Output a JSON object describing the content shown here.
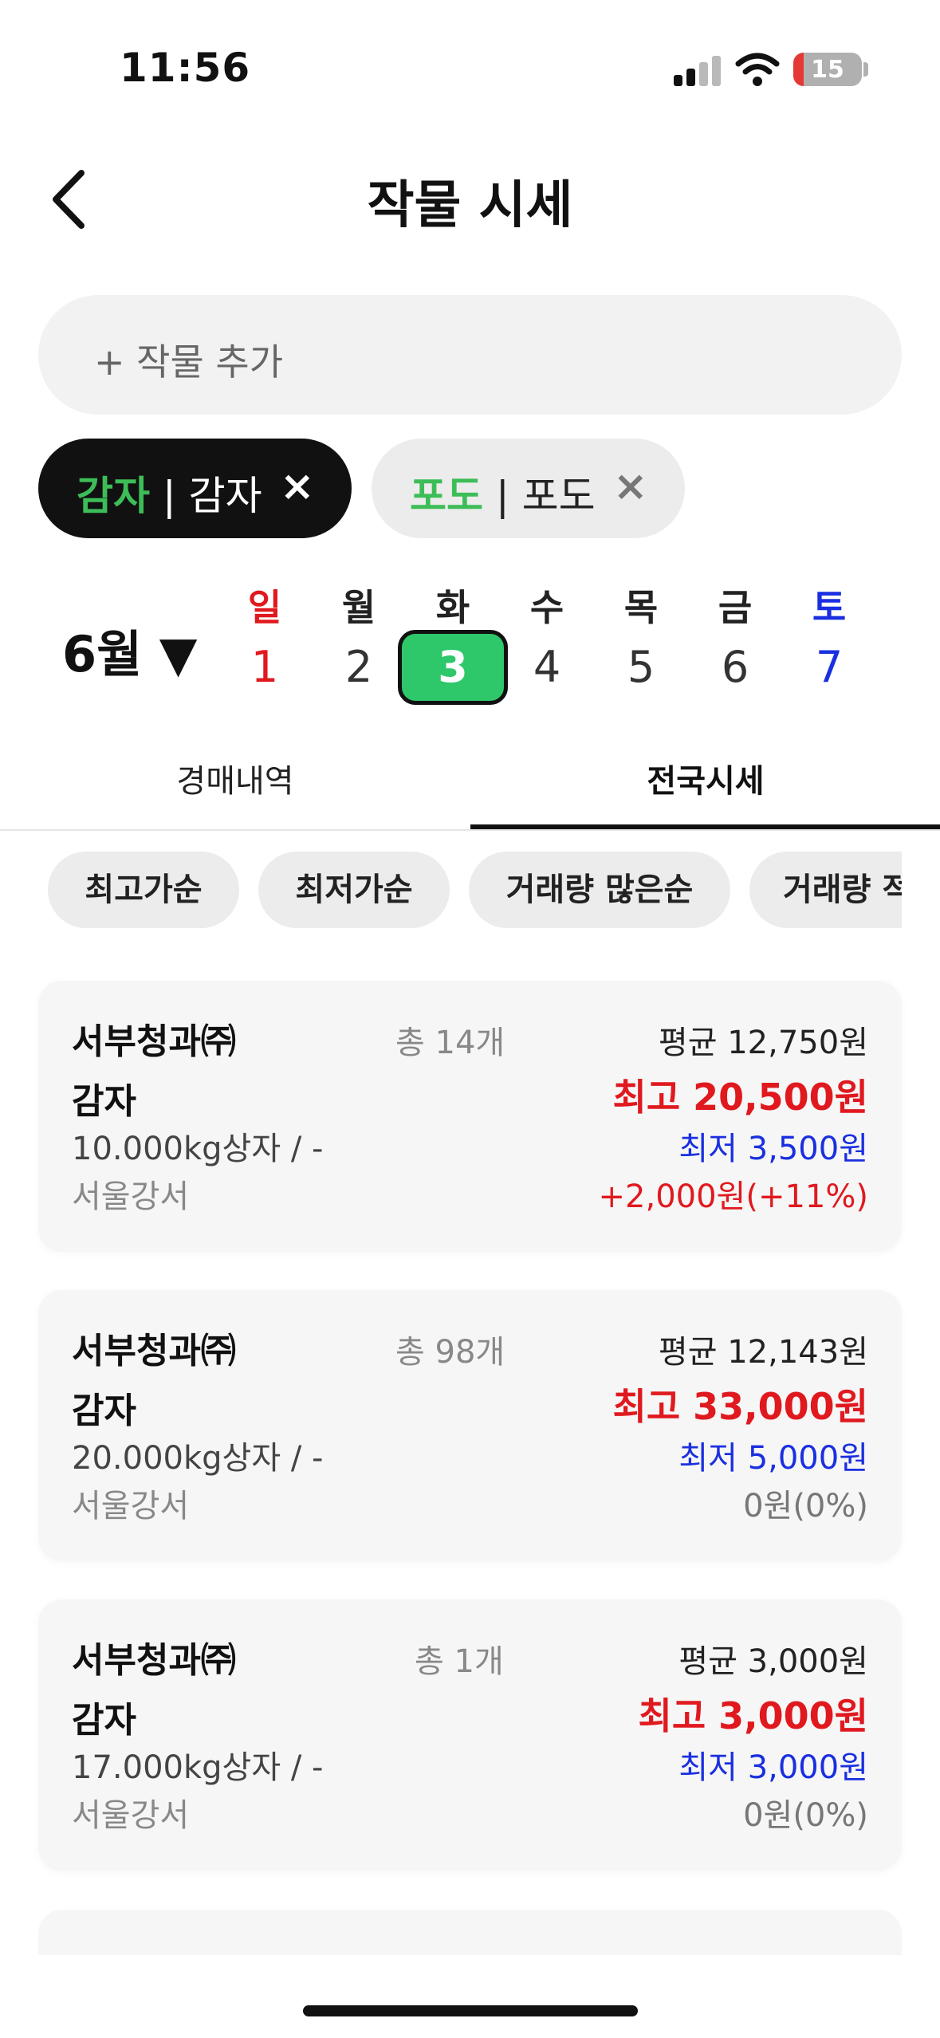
{
  "status_bar": {
    "time": "11:56",
    "battery": "15",
    "battery_level": 0.15
  },
  "header": {
    "title": "작물 시세"
  },
  "add_crop": {
    "label": "+ 작물 추가"
  },
  "chips": [
    {
      "primary": "감자",
      "secondary": " | 감자",
      "close": "×"
    },
    {
      "primary": "포도",
      "secondary": " | 포도",
      "close": "×"
    }
  ],
  "calendar": {
    "month": "6월 ▼",
    "days": [
      {
        "name": "일",
        "num": "1"
      },
      {
        "name": "월",
        "num": "2"
      },
      {
        "name": "화",
        "num": "3"
      },
      {
        "name": "수",
        "num": "4"
      },
      {
        "name": "목",
        "num": "5"
      },
      {
        "name": "금",
        "num": "6"
      },
      {
        "name": "토",
        "num": "7"
      }
    ]
  },
  "tabs": [
    {
      "label": "경매내역"
    },
    {
      "label": "전국시세"
    }
  ],
  "sort_options": [
    {
      "label": "최고가순"
    },
    {
      "label": "최저가순"
    },
    {
      "label": "거래량 많은순"
    },
    {
      "label": "거래량 적"
    }
  ],
  "listings": [
    {
      "seller": "서부청과㈜",
      "count": "총 14개",
      "crop": "감자",
      "spec": "10.000kg상자 / -",
      "market": "서울강서",
      "avg": "평균 12,750원",
      "high_label": "최고 ",
      "high": "20,500원",
      "low_label": "최저 ",
      "low": "3,500원",
      "change": "+2,000원(+11%)"
    },
    {
      "seller": "서부청과㈜",
      "count": "총 98개",
      "crop": "감자",
      "spec": "20.000kg상자 / -",
      "market": "서울강서",
      "avg": "평균 12,143원",
      "high_label": "최고 ",
      "high": "33,000원",
      "low_label": "최저 ",
      "low": "5,000원",
      "change": "0원(0%)"
    },
    {
      "seller": "서부청과㈜",
      "count": "총 1개",
      "crop": "감자",
      "spec": "17.000kg상자 / -",
      "market": "서울강서",
      "avg": "평균 3,000원",
      "high_label": "최고 ",
      "high": "3,000원",
      "low_label": "최저 ",
      "low": "3,000원",
      "change": "0원(0%)"
    }
  ],
  "colors": {
    "accent_green": "#2ec76a",
    "chip_green": "#3dbd57",
    "price_high": "#e0191f",
    "price_low": "#1a2fe0"
  },
  "icons": {
    "back": "chevron-left-icon",
    "close": "close-icon",
    "signal": "signal-icon",
    "wifi": "wifi-icon",
    "battery": "battery-icon"
  }
}
